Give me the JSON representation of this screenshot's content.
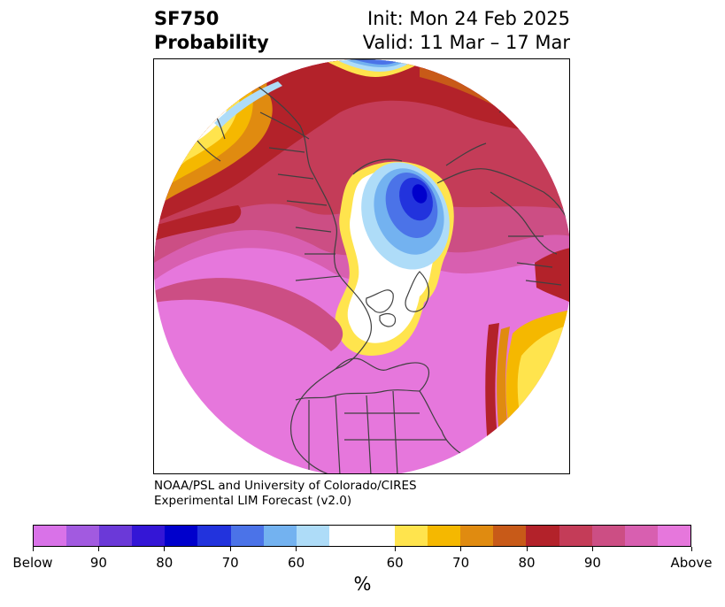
{
  "title": {
    "left_line1": "SF750",
    "left_line2": "Probability",
    "right_line1": "Init: Mon 24 Feb 2025",
    "right_line2": "Valid: 11 Mar – 17 Mar"
  },
  "credit": {
    "line1": "NOAA/PSL and University of Colorado/CIRES",
    "line2": "Experimental LIM Forecast (v2.0)"
  },
  "colorbar": {
    "colors": [
      "#d972e8",
      "#a25ae0",
      "#6b39d8",
      "#3416d6",
      "#0000cc",
      "#2233dd",
      "#4b73e8",
      "#73b2f0",
      "#aedcf8",
      "#ffffff",
      "#ffe44d",
      "#f5b800",
      "#e08b10",
      "#c85a18",
      "#b3222a",
      "#c43c58",
      "#cc4e84",
      "#d85fb0",
      "#e677dc"
    ],
    "tick_labels": [
      "Below",
      "90",
      "80",
      "70",
      "60",
      "60",
      "70",
      "80",
      "90",
      "Above"
    ],
    "units": "%"
  },
  "map": {
    "colors": {
      "above": "#e677dc",
      "p90": "#d85fb0",
      "p80": "#cc4e84",
      "p75": "#c43c58",
      "p70": "#b3222a",
      "p65": "#c85a18",
      "p60": "#e08b10",
      "p55": "#f5b800",
      "p50": "#ffe44d",
      "neutral": "#ffffff",
      "b60": "#aedcf8",
      "b70": "#73b2f0",
      "b80": "#4b73e8",
      "b90": "#2233dd",
      "below": "#0000cc",
      "coast": "#404040"
    }
  }
}
